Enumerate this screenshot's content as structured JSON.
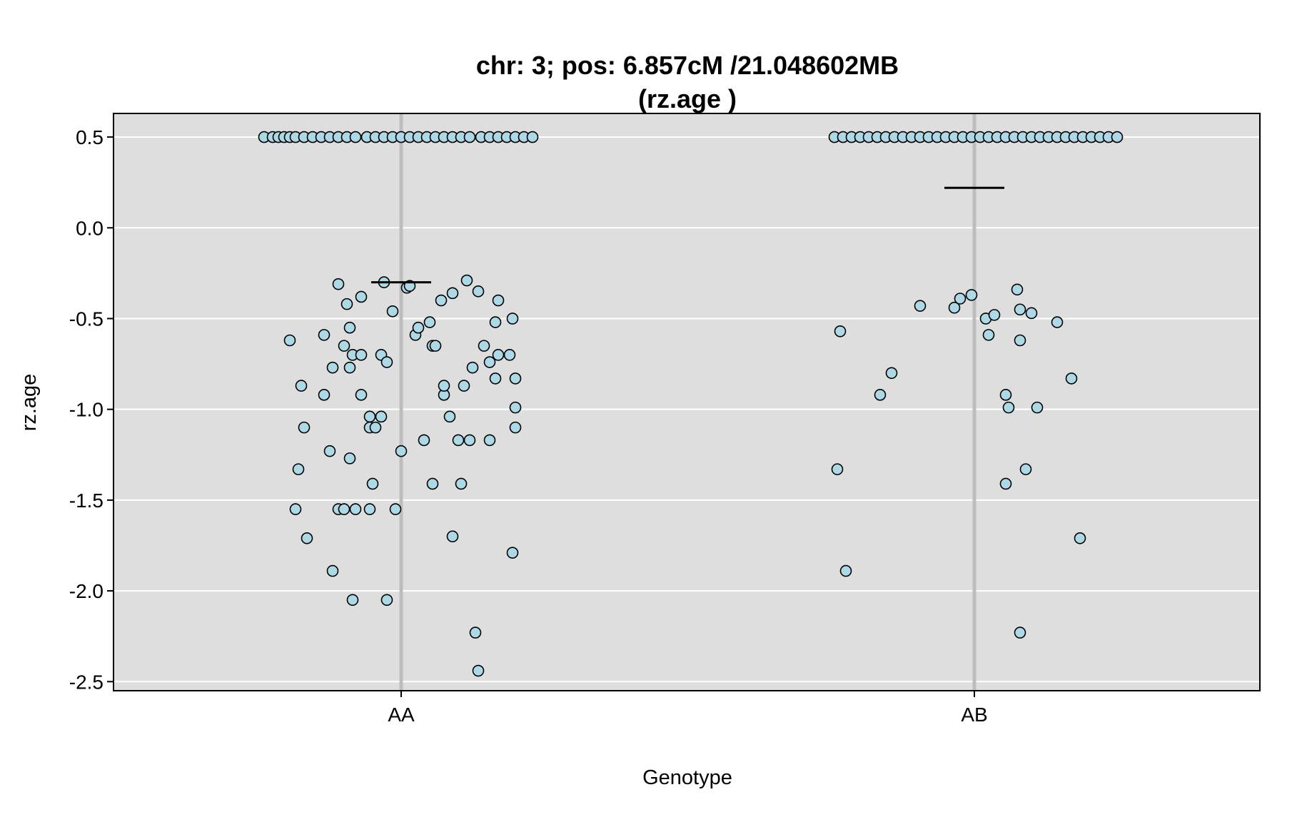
{
  "chart_data": {
    "type": "scatter",
    "subtype": "jittered strip plot with group means",
    "title_line1": "chr: 3; pos: 6.857cM /21.048602MB",
    "title_line2": "(rz.age )",
    "xlabel": "Genotype",
    "ylabel": "rz.age",
    "categories": [
      "AA",
      "AB"
    ],
    "ylim": [
      -2.55,
      0.63
    ],
    "yticks": [
      0.5,
      0.0,
      -0.5,
      -1.0,
      -1.5,
      -2.0,
      -2.5
    ],
    "ytick_labels": [
      "0.5",
      "0.0",
      "-0.5",
      "-1.0",
      "-1.5",
      "-2.0",
      "-2.5"
    ],
    "grid": true,
    "colors": {
      "panel": "#dedede",
      "grid": "#ffffff",
      "point_fill": "#add8e6",
      "point_stroke": "#000000",
      "center_line": "#bdbdbd",
      "mean_line": "#000000"
    },
    "groups": [
      {
        "name": "AA",
        "mean": -0.3,
        "points": [
          [
            -0.48,
            0.5
          ],
          [
            -0.45,
            0.5
          ],
          [
            -0.43,
            0.5
          ],
          [
            -0.41,
            0.5
          ],
          [
            -0.39,
            0.5
          ],
          [
            -0.37,
            0.5
          ],
          [
            -0.34,
            0.5
          ],
          [
            -0.31,
            0.5
          ],
          [
            -0.28,
            0.5
          ],
          [
            -0.25,
            0.5
          ],
          [
            -0.22,
            0.5
          ],
          [
            -0.19,
            0.5
          ],
          [
            -0.16,
            0.5
          ],
          [
            -0.12,
            0.5
          ],
          [
            -0.09,
            0.5
          ],
          [
            -0.06,
            0.5
          ],
          [
            -0.03,
            0.5
          ],
          [
            0.0,
            0.5
          ],
          [
            0.03,
            0.5
          ],
          [
            0.06,
            0.5
          ],
          [
            0.09,
            0.5
          ],
          [
            0.12,
            0.5
          ],
          [
            0.15,
            0.5
          ],
          [
            0.18,
            0.5
          ],
          [
            0.21,
            0.5
          ],
          [
            0.24,
            0.5
          ],
          [
            0.28,
            0.5
          ],
          [
            0.31,
            0.5
          ],
          [
            0.34,
            0.5
          ],
          [
            0.37,
            0.5
          ],
          [
            0.4,
            0.5
          ],
          [
            0.43,
            0.5
          ],
          [
            0.46,
            0.5
          ],
          [
            -0.39,
            -0.62
          ],
          [
            -0.35,
            -0.87
          ],
          [
            -0.34,
            -1.1
          ],
          [
            -0.36,
            -1.33
          ],
          [
            -0.37,
            -1.55
          ],
          [
            -0.33,
            -1.71
          ],
          [
            -0.27,
            -0.59
          ],
          [
            -0.27,
            -0.92
          ],
          [
            -0.25,
            -1.23
          ],
          [
            -0.24,
            -1.89
          ],
          [
            -0.22,
            -1.55
          ],
          [
            -0.24,
            -0.77
          ],
          [
            -0.22,
            -0.31
          ],
          [
            -0.19,
            -0.42
          ],
          [
            -0.18,
            -0.55
          ],
          [
            -0.2,
            -0.65
          ],
          [
            -0.17,
            -0.7
          ],
          [
            -0.18,
            -0.77
          ],
          [
            -0.18,
            -1.27
          ],
          [
            -0.2,
            -1.55
          ],
          [
            -0.16,
            -1.55
          ],
          [
            -0.17,
            -2.05
          ],
          [
            -0.14,
            -0.38
          ],
          [
            -0.14,
            -0.7
          ],
          [
            -0.14,
            -0.92
          ],
          [
            -0.11,
            -1.04
          ],
          [
            -0.11,
            -1.1
          ],
          [
            -0.09,
            -1.1
          ],
          [
            -0.1,
            -1.41
          ],
          [
            -0.11,
            -1.55
          ],
          [
            -0.07,
            -0.7
          ],
          [
            -0.07,
            -1.04
          ],
          [
            -0.06,
            -0.3
          ],
          [
            -0.05,
            -0.74
          ],
          [
            -0.05,
            -2.05
          ],
          [
            -0.03,
            -0.46
          ],
          [
            -0.02,
            -1.55
          ],
          [
            0.0,
            -1.23
          ],
          [
            0.02,
            -0.33
          ],
          [
            0.03,
            -0.32
          ],
          [
            0.05,
            -0.59
          ],
          [
            0.06,
            -0.55
          ],
          [
            0.08,
            -1.17
          ],
          [
            0.1,
            -0.52
          ],
          [
            0.11,
            -0.65
          ],
          [
            0.11,
            -1.41
          ],
          [
            0.12,
            -0.65
          ],
          [
            0.14,
            -0.4
          ],
          [
            0.15,
            -0.92
          ],
          [
            0.15,
            -0.87
          ],
          [
            0.17,
            -1.04
          ],
          [
            0.18,
            -1.7
          ],
          [
            0.18,
            -0.36
          ],
          [
            0.2,
            -1.17
          ],
          [
            0.21,
            -1.41
          ],
          [
            0.22,
            -0.87
          ],
          [
            0.23,
            -0.29
          ],
          [
            0.24,
            -1.17
          ],
          [
            0.25,
            -0.77
          ],
          [
            0.26,
            -2.23
          ],
          [
            0.27,
            -2.44
          ],
          [
            0.27,
            -0.35
          ],
          [
            0.29,
            -0.65
          ],
          [
            0.31,
            -0.74
          ],
          [
            0.31,
            -1.17
          ],
          [
            0.33,
            -0.52
          ],
          [
            0.33,
            -0.83
          ],
          [
            0.34,
            -0.7
          ],
          [
            0.34,
            -0.4
          ],
          [
            0.38,
            -0.7
          ],
          [
            0.39,
            -0.5
          ],
          [
            0.39,
            -1.79
          ],
          [
            0.4,
            -0.83
          ],
          [
            0.4,
            -0.99
          ],
          [
            0.4,
            -1.1
          ]
        ]
      },
      {
        "name": "AB",
        "mean": 0.22,
        "points": [
          [
            -0.49,
            0.5
          ],
          [
            -0.46,
            0.5
          ],
          [
            -0.43,
            0.5
          ],
          [
            -0.4,
            0.5
          ],
          [
            -0.37,
            0.5
          ],
          [
            -0.34,
            0.5
          ],
          [
            -0.31,
            0.5
          ],
          [
            -0.28,
            0.5
          ],
          [
            -0.25,
            0.5
          ],
          [
            -0.22,
            0.5
          ],
          [
            -0.19,
            0.5
          ],
          [
            -0.16,
            0.5
          ],
          [
            -0.13,
            0.5
          ],
          [
            -0.1,
            0.5
          ],
          [
            -0.07,
            0.5
          ],
          [
            -0.04,
            0.5
          ],
          [
            -0.01,
            0.5
          ],
          [
            0.02,
            0.5
          ],
          [
            0.05,
            0.5
          ],
          [
            0.08,
            0.5
          ],
          [
            0.11,
            0.5
          ],
          [
            0.14,
            0.5
          ],
          [
            0.17,
            0.5
          ],
          [
            0.2,
            0.5
          ],
          [
            0.23,
            0.5
          ],
          [
            0.26,
            0.5
          ],
          [
            0.29,
            0.5
          ],
          [
            0.32,
            0.5
          ],
          [
            0.35,
            0.5
          ],
          [
            0.38,
            0.5
          ],
          [
            0.41,
            0.5
          ],
          [
            0.44,
            0.5
          ],
          [
            0.47,
            0.5
          ],
          [
            0.5,
            0.5
          ],
          [
            -0.19,
            -0.43
          ],
          [
            -0.05,
            -0.39
          ],
          [
            -0.07,
            -0.44
          ],
          [
            -0.01,
            -0.37
          ],
          [
            -0.47,
            -0.57
          ],
          [
            -0.29,
            -0.8
          ],
          [
            -0.33,
            -0.92
          ],
          [
            -0.48,
            -1.33
          ],
          [
            -0.45,
            -1.89
          ],
          [
            0.04,
            -0.5
          ],
          [
            0.07,
            -0.48
          ],
          [
            0.05,
            -0.59
          ],
          [
            0.15,
            -0.34
          ],
          [
            0.16,
            -0.45
          ],
          [
            0.16,
            -0.62
          ],
          [
            0.2,
            -0.47
          ],
          [
            0.29,
            -0.52
          ],
          [
            0.11,
            -0.92
          ],
          [
            0.12,
            -0.99
          ],
          [
            0.22,
            -0.99
          ],
          [
            0.34,
            -0.83
          ],
          [
            0.11,
            -1.41
          ],
          [
            0.18,
            -1.33
          ],
          [
            0.37,
            -1.71
          ],
          [
            0.16,
            -2.23
          ]
        ]
      }
    ]
  }
}
